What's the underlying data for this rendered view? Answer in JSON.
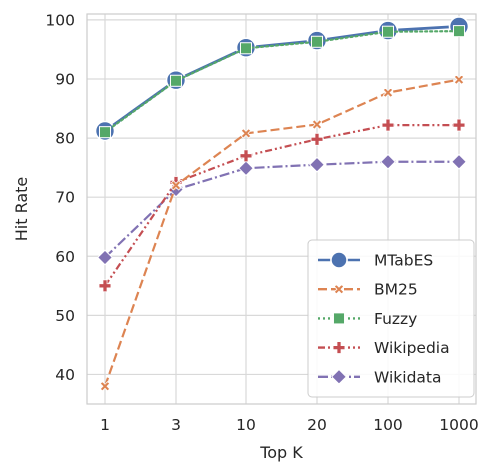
{
  "chart_data": {
    "type": "line",
    "title": "",
    "xlabel": "Top K",
    "ylabel": "Hit Rate",
    "categories": [
      "1",
      "3",
      "10",
      "20",
      "100",
      "1000"
    ],
    "ylim": [
      35,
      101
    ],
    "yticks": [
      40,
      50,
      60,
      70,
      80,
      90,
      100
    ],
    "grid": true,
    "legend_position": "bottom-right",
    "series": [
      {
        "name": "MTabES",
        "color": "#4c72b0",
        "linestyle": "solid",
        "marker": "circle",
        "values": [
          81.2,
          89.8,
          95.3,
          96.5,
          98.2,
          98.9
        ]
      },
      {
        "name": "BM25",
        "color": "#dd8452",
        "linestyle": "dashed",
        "marker": "x",
        "values": [
          38.0,
          72.0,
          80.8,
          82.3,
          87.7,
          89.9
        ]
      },
      {
        "name": "Fuzzy",
        "color": "#55a868",
        "linestyle": "dotted",
        "marker": "square",
        "values": [
          81.0,
          89.7,
          95.2,
          96.3,
          98.0,
          98.1
        ]
      },
      {
        "name": "Wikipedia",
        "color": "#c44e52",
        "linestyle": "dashdotdot",
        "marker": "plus",
        "values": [
          55.0,
          72.5,
          77.0,
          79.8,
          82.2,
          82.2
        ]
      },
      {
        "name": "Wikidata",
        "color": "#8172b3",
        "linestyle": "dashdot",
        "marker": "diamond",
        "values": [
          59.8,
          71.3,
          74.9,
          75.5,
          76.0,
          76.0
        ]
      }
    ]
  }
}
